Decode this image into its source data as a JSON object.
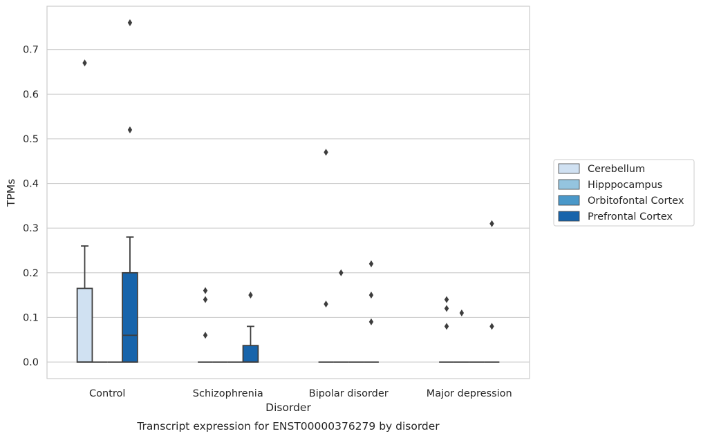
{
  "chart_data": {
    "type": "boxplot",
    "caption": "Transcript expression for ENST00000376279 by disorder",
    "xlabel": "Disorder",
    "ylabel": "TPMs",
    "ylim": [
      -0.037,
      0.797
    ],
    "yticks": [
      "0.0",
      "0.1",
      "0.2",
      "0.3",
      "0.4",
      "0.5",
      "0.6",
      "0.7"
    ],
    "grid": "horizontal",
    "legend_position": "right",
    "categories": [
      "Control",
      "Schizophrenia",
      "Bipolar disorder",
      "Major depression"
    ],
    "series": [
      {
        "name": "Cerebellum",
        "color": "#d0e1f2",
        "boxes": [
          {
            "q1": 0,
            "median": 0,
            "q3": 0.165,
            "whisker_low": 0,
            "whisker_high": 0.26,
            "outliers": [
              0.67
            ]
          },
          {
            "q1": 0,
            "median": 0,
            "q3": 0,
            "whisker_low": 0,
            "whisker_high": 0,
            "outliers": [
              0.06,
              0.14,
              0.16
            ]
          },
          {
            "q1": 0,
            "median": 0,
            "q3": 0,
            "whisker_low": 0,
            "whisker_high": 0,
            "outliers": [
              0.13,
              0.47
            ]
          },
          {
            "q1": 0,
            "median": 0,
            "q3": 0,
            "whisker_low": 0,
            "whisker_high": 0,
            "outliers": [
              0.08,
              0.12,
              0.14
            ]
          }
        ]
      },
      {
        "name": "Hipppocampus",
        "color": "#94c4df",
        "boxes": [
          {
            "q1": 0,
            "median": 0,
            "q3": 0,
            "whisker_low": 0,
            "whisker_high": 0,
            "outliers": []
          },
          {
            "q1": 0,
            "median": 0,
            "q3": 0,
            "whisker_low": 0,
            "whisker_high": 0,
            "outliers": []
          },
          {
            "q1": 0,
            "median": 0,
            "q3": 0,
            "whisker_low": 0,
            "whisker_high": 0,
            "outliers": [
              0.2
            ]
          },
          {
            "q1": 0,
            "median": 0,
            "q3": 0,
            "whisker_low": 0,
            "whisker_high": 0,
            "outliers": [
              0.11
            ]
          }
        ]
      },
      {
        "name": "Orbitofontal Cortex",
        "color": "#4a98c9",
        "boxes": [
          {
            "q1": 0,
            "median": 0,
            "q3": 0,
            "whisker_low": 0,
            "whisker_high": 0,
            "outliers": []
          },
          {
            "q1": 0,
            "median": 0,
            "q3": 0,
            "whisker_low": 0,
            "whisker_high": 0,
            "outliers": []
          },
          {
            "q1": 0,
            "median": 0,
            "q3": 0,
            "whisker_low": 0,
            "whisker_high": 0,
            "outliers": []
          },
          {
            "q1": 0,
            "median": 0,
            "q3": 0,
            "whisker_low": 0,
            "whisker_high": 0,
            "outliers": []
          }
        ]
      },
      {
        "name": "Prefrontal Cortex",
        "color": "#1764ab",
        "boxes": [
          {
            "q1": 0,
            "median": 0.06,
            "q3": 0.2,
            "whisker_low": 0,
            "whisker_high": 0.28,
            "outliers": [
              0.52,
              0.76
            ]
          },
          {
            "q1": 0,
            "median": 0,
            "q3": 0.037,
            "whisker_low": 0,
            "whisker_high": 0.08,
            "outliers": [
              0.15
            ]
          },
          {
            "q1": 0,
            "median": 0,
            "q3": 0,
            "whisker_low": 0,
            "whisker_high": 0,
            "outliers": [
              0.09,
              0.15,
              0.22
            ]
          },
          {
            "q1": 0,
            "median": 0,
            "q3": 0,
            "whisker_low": 0,
            "whisker_high": 0,
            "outliers": [
              0.08,
              0.31
            ]
          }
        ]
      }
    ]
  }
}
